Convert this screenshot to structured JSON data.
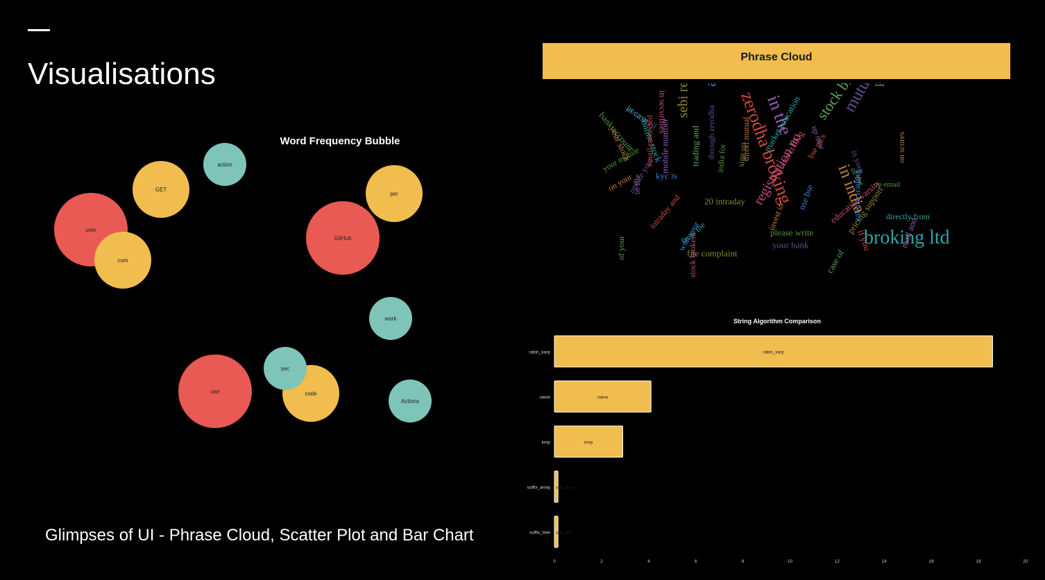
{
  "slide": {
    "title": "Visualisations",
    "caption": "Glimpses of UI - Phrase Cloud, Scatter Plot and Bar Chart"
  },
  "colors": {
    "red": "#e85a53",
    "yellow": "#f0bd4e",
    "teal": "#7fc4b8"
  },
  "chart_data": [
    {
      "type": "scatter",
      "title": "Word Frequency Bubble",
      "points": [
        {
          "label": "action",
          "color": "teal"
        },
        {
          "label": "GET",
          "color": "yellow"
        },
        {
          "label": "user",
          "color": "red"
        },
        {
          "label": "com",
          "color": "yellow"
        },
        {
          "label": "per",
          "color": "yellow"
        },
        {
          "label": "GitHub",
          "color": "red"
        },
        {
          "label": "work",
          "color": "teal"
        },
        {
          "label": "use",
          "color": "red"
        },
        {
          "label": "code",
          "color": "yellow"
        },
        {
          "label": "sec",
          "color": "teal"
        },
        {
          "label": "Actions",
          "color": "teal"
        }
      ]
    },
    {
      "type": "wordcloud",
      "title": "Phrase Cloud",
      "phrases": [
        "your mail",
        "bank account",
        "your stock",
        "online stock",
        "in securities",
        "sebi registration",
        "about products",
        "zerodha broking",
        "in the",
        "stock broker",
        "mutual funds",
        "products pricing",
        "in india",
        "broking ltd",
        "registration no",
        "20 intraday",
        "kyc is",
        "email protected",
        "mobile number",
        "trading and",
        "through zerodha",
        "india for",
        "direct mutual",
        "market education",
        "connect blog",
        "sign up",
        "nse bse",
        "bse mcx",
        "up now",
        "of the",
        "in your",
        "to email",
        "on scores",
        "directly from",
        "education varsity",
        "pricing support",
        "varsity trading",
        "if you",
        "mail and",
        "case of",
        "your bank",
        "please write",
        "invest in",
        "from the",
        "stock brokers",
        "file complaint",
        "with your",
        "intraday and",
        "to file",
        "of your",
        "update your",
        "your mobile",
        "on your",
        "in case"
      ]
    },
    {
      "type": "bar",
      "orientation": "horizontal",
      "title": "String Algorithm Comparison",
      "categories": [
        "rabin_karp",
        "naive",
        "kmp",
        "suffix_array",
        "suffix_tree"
      ],
      "values": [
        18.6,
        4.1,
        2.9,
        0.15,
        0.15
      ],
      "xlim": [
        0,
        20
      ],
      "xticks": [
        0,
        2,
        4,
        6,
        8,
        10,
        12,
        14,
        16,
        18,
        20
      ],
      "bar_color": "#f0bd4e"
    }
  ]
}
